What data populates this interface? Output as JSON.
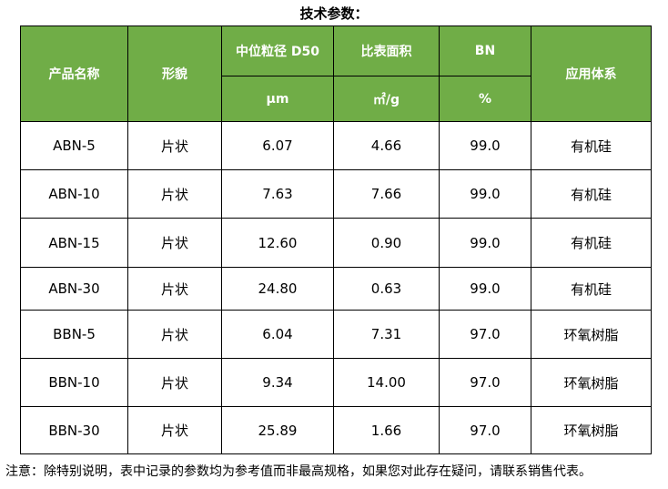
{
  "title": "技术参数：",
  "table": {
    "header": {
      "top": [
        "产品名称",
        "形貌",
        "中位粒径 D50",
        "比表面积",
        "BN",
        "应用体系"
      ],
      "units": [
        "μm",
        "㎡/g",
        "%"
      ]
    },
    "rows": [
      [
        "ABN-5",
        "片状",
        "6.07",
        "4.66",
        "99.0",
        "有机硅"
      ],
      [
        "ABN-10",
        "片状",
        "7.63",
        "7.66",
        "99.0",
        "有机硅"
      ],
      [
        "ABN-15",
        "片状",
        "12.60",
        "0.90",
        "99.0",
        "有机硅"
      ],
      [
        "ABN-30",
        "片状",
        "24.80",
        "0.63",
        "99.0",
        "有机硅"
      ],
      [
        "BBN-5",
        "片状",
        "6.04",
        "7.31",
        "97.0",
        "环氧树脂"
      ],
      [
        "BBN-10",
        "片状",
        "9.34",
        "14.00",
        "97.0",
        "环氧树脂"
      ],
      [
        "BBN-30",
        "片状",
        "25.89",
        "1.66",
        "97.0",
        "环氧树脂"
      ]
    ]
  },
  "note": "注意：除特别说明，表中记录的参数均为参考值而非最高规格，如果您对此存在疑问，请联系销售代表。"
}
